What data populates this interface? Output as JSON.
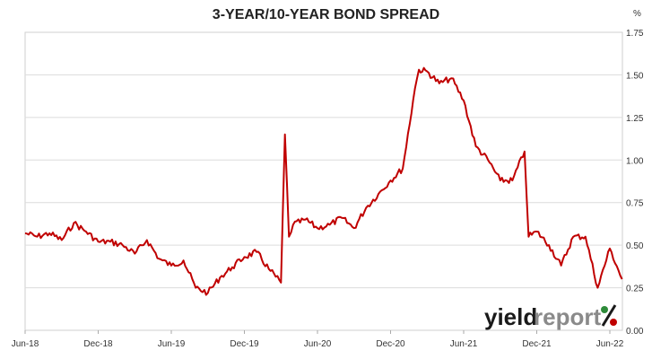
{
  "chart_data": {
    "type": "line",
    "title": "3-YEAR/10-YEAR BOND SPREAD",
    "y_unit": "%",
    "ylim": [
      0,
      1.75
    ],
    "y_ticks": [
      "0.00",
      "0.25",
      "0.50",
      "0.75",
      "1.00",
      "1.25",
      "1.50",
      "1.75"
    ],
    "x_ticks": [
      "Jun-18",
      "Dec-18",
      "Jun-19",
      "Dec-19",
      "Jun-20",
      "Dec-20",
      "Jun-21",
      "Dec-21",
      "Jun-22"
    ],
    "grid": "horizontal",
    "series": [
      {
        "color": "#c00000",
        "x": [
          "2018-06",
          "2018-07",
          "2018-08",
          "2018-09",
          "2018-10",
          "2018-11",
          "2018-12",
          "2019-01",
          "2019-02",
          "2019-03",
          "2019-04",
          "2019-05",
          "2019-06",
          "2019-07",
          "2019-08",
          "2019-09",
          "2019-10",
          "2019-11",
          "2019-12",
          "2020-01",
          "2020-02",
          "2020-03a",
          "2020-03b",
          "2020-03c",
          "2020-04",
          "2020-05",
          "2020-06",
          "2020-07",
          "2020-08",
          "2020-09",
          "2020-10",
          "2020-11",
          "2020-12",
          "2021-01",
          "2021-02a",
          "2021-02b",
          "2021-03",
          "2021-04",
          "2021-05",
          "2021-06",
          "2021-07",
          "2021-08",
          "2021-09",
          "2021-10",
          "2021-11a",
          "2021-11b",
          "2021-12",
          "2022-01",
          "2022-02",
          "2022-03",
          "2022-04",
          "2022-05",
          "2022-06",
          "2022-07"
        ],
        "values": [
          0.57,
          0.55,
          0.57,
          0.53,
          0.63,
          0.58,
          0.52,
          0.52,
          0.5,
          0.45,
          0.53,
          0.42,
          0.38,
          0.41,
          0.25,
          0.22,
          0.31,
          0.37,
          0.43,
          0.46,
          0.36,
          0.28,
          1.15,
          0.55,
          0.62,
          0.65,
          0.6,
          0.62,
          0.66,
          0.6,
          0.72,
          0.8,
          0.88,
          0.95,
          1.42,
          1.53,
          1.52,
          1.45,
          1.48,
          1.35,
          1.08,
          1.0,
          0.88,
          0.88,
          1.05,
          0.55,
          0.58,
          0.5,
          0.38,
          0.55,
          0.55,
          0.25,
          0.48,
          0.3
        ]
      }
    ]
  },
  "logo": {
    "text_a": "yield",
    "text_b": "report",
    "mark": "%",
    "color_dark": "#1a1a1a",
    "color_light": "#8a8a8a",
    "color_red": "#c00000",
    "color_green": "#2e8b3a"
  }
}
